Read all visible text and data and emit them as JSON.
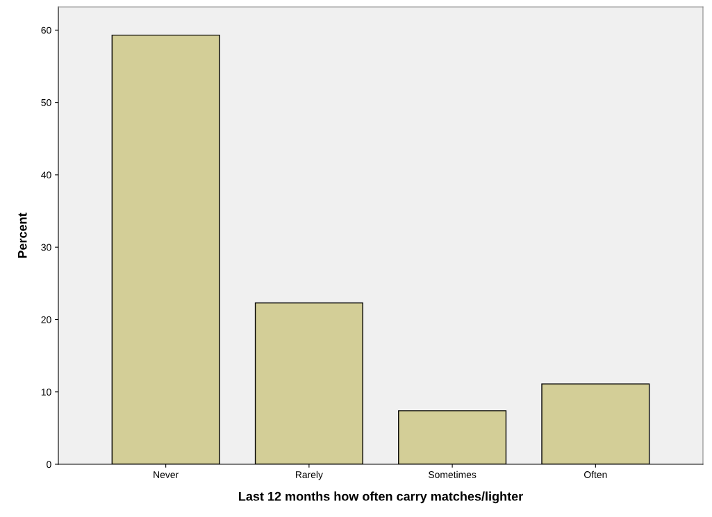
{
  "chart_data": {
    "type": "bar",
    "xlabel": "Last 12 months how often carry matches/lighter",
    "ylabel": "Percent",
    "categories": [
      "Never",
      "Rarely",
      "Sometimes",
      "Often"
    ],
    "values": [
      59.3,
      22.3,
      7.4,
      11.1
    ],
    "color": "#d3ce97",
    "ylim": [
      0,
      63.2
    ],
    "yticks": [
      0,
      10,
      20,
      30,
      40,
      50,
      60
    ],
    "grid": false
  }
}
